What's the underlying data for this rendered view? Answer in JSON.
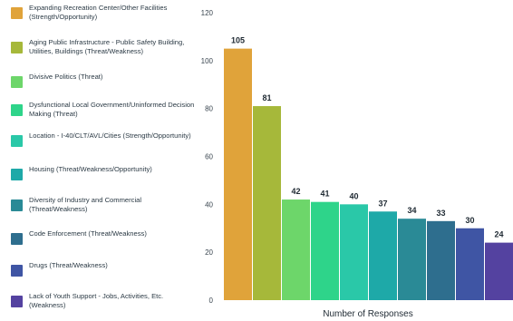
{
  "chart_data": {
    "type": "bar",
    "categories": [
      "Expanding Recreation Center/Other Facilities (Strength/Opportunity)",
      "Aging Public Infrastructure - Public Safety Building, Utilities, Buildings (Threat/Weakness)",
      "Divisive Politics (Threat)",
      "Dysfunctional Local Government/Uninformed Decision Making (Threat)",
      "Location - I-40/CLT/AVL/Cities (Strength/Opportunity)",
      "Housing (Threat/Weakness/Opportunity)",
      "Diversity of Industry and Commercial (Threat/Weakness)",
      "Code Enforcement (Threat/Weakness)",
      "Drugs (Threat/Weakness)",
      "Lack of Youth Support - Jobs, Activities, Etc. (Weakness)"
    ],
    "values": [
      105,
      81,
      42,
      41,
      40,
      37,
      34,
      33,
      30,
      24
    ],
    "colors": [
      "#E0A33A",
      "#A6B83A",
      "#6DD66A",
      "#2ED48A",
      "#2AC8A8",
      "#1EA9A8",
      "#2A8A96",
      "#2E6E8E",
      "#3F55A4",
      "#5442A0"
    ],
    "xlabel": "Number of Responses",
    "ylim": [
      0,
      120
    ],
    "yticks": [
      0,
      20,
      40,
      60,
      80,
      100,
      120
    ],
    "legend_position": "left",
    "grid": false
  }
}
